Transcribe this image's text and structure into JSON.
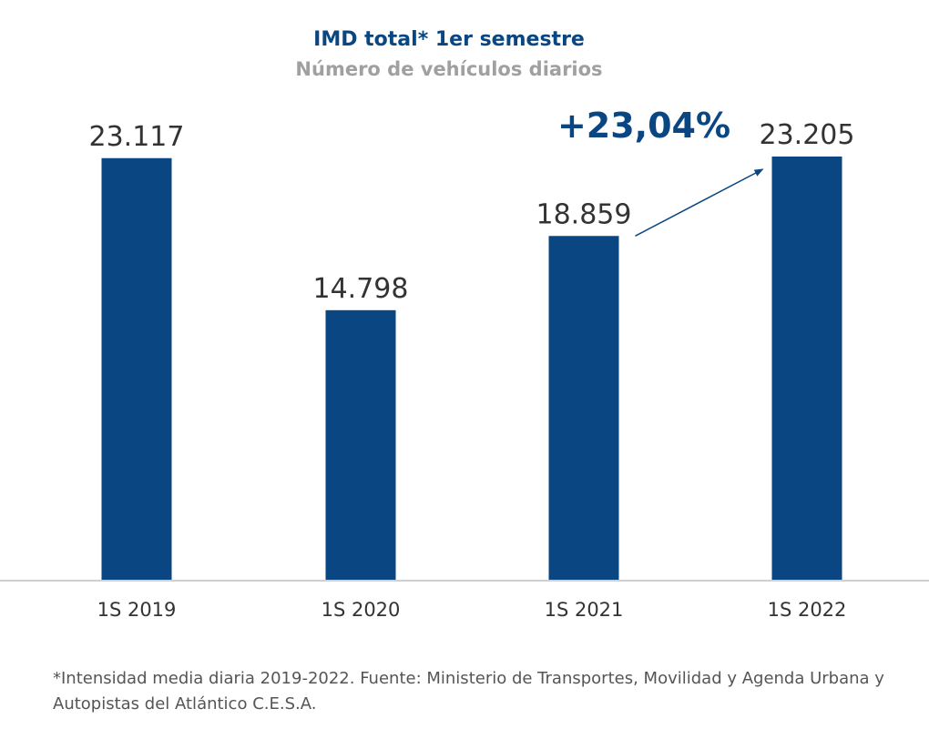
{
  "chart_data": {
    "type": "bar",
    "title": "IMD total* 1er semestre",
    "subtitle": "Número de vehículos diarios",
    "categories": [
      "1S 2019",
      "1S 2020",
      "1S 2021",
      "1S 2022"
    ],
    "values": [
      23117,
      14798,
      18859,
      23205
    ],
    "value_labels": [
      "23.117",
      "14.798",
      "18.859",
      "23.205"
    ],
    "ylim": [
      0,
      23205
    ],
    "grid": false,
    "annotation": {
      "text": "+23,04%",
      "from_category": "1S 2021",
      "to_category": "1S 2022"
    },
    "colors": {
      "bar": "#0a4682",
      "title": "#0a4682",
      "subtitle": "#a0a0a0",
      "label": "#333333",
      "axis": "#cfcfcf",
      "annotation": "#0a4682"
    }
  },
  "footnote": "*Intensidad media diaria 2019-2022. Fuente: Ministerio de Transportes, Movilidad y Agenda Urbana y Autopistas del Atlántico C.E.S.A."
}
